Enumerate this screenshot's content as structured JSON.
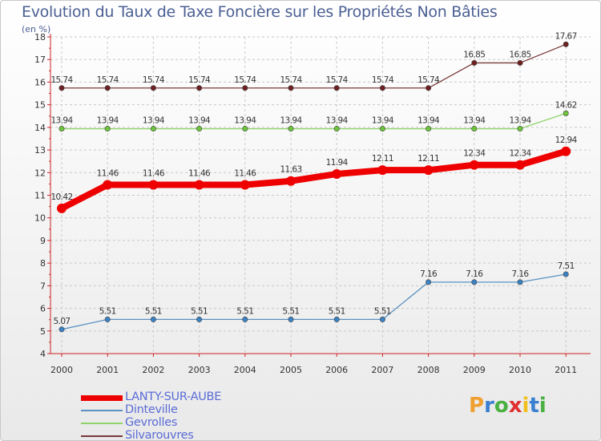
{
  "title": "Evolution du Taux de Taxe Foncière sur les Propriétés Non Bâties",
  "unit": "(en %)",
  "chart_data": {
    "type": "line",
    "title": "Evolution du Taux de Taxe Foncière sur les Propriétés Non Bâties",
    "xlabel": "",
    "ylabel": "(en %)",
    "categories": [
      "2000",
      "2001",
      "2002",
      "2003",
      "2004",
      "2005",
      "2006",
      "2007",
      "2008",
      "2009",
      "2010",
      "2011"
    ],
    "ylim": [
      4,
      18
    ],
    "yticks": [
      4,
      5,
      6,
      7,
      8,
      9,
      10,
      11,
      12,
      13,
      14,
      15,
      16,
      17,
      18
    ],
    "grid": true,
    "series": [
      {
        "name": "LANTY-SUR-AUBE",
        "color": "#ee0000",
        "highlight": true,
        "values": [
          10.42,
          11.46,
          11.46,
          11.46,
          11.46,
          11.63,
          11.94,
          12.11,
          12.11,
          12.34,
          12.34,
          12.94
        ],
        "labels": [
          "10.42",
          "11.46",
          "11.46",
          "11.46",
          "11.46",
          "11.63",
          "11.94",
          "12.11",
          "12.11",
          "12.34",
          "12.34",
          "12.94"
        ]
      },
      {
        "name": "Dinteville",
        "color": "#5b92c2",
        "marker_color": "#3b82c4",
        "values": [
          5.07,
          5.51,
          5.51,
          5.51,
          5.51,
          5.51,
          5.51,
          5.51,
          7.16,
          7.16,
          7.16,
          7.51
        ],
        "labels": [
          "5.07",
          "5.51",
          "5.51",
          "5.51",
          "5.51",
          "5.51",
          "5.51",
          "5.51",
          "7.16",
          "7.16",
          "7.16",
          "7.51"
        ]
      },
      {
        "name": "Gevrolles",
        "color": "#8fd36a",
        "marker_color": "#6cc43a",
        "values": [
          13.94,
          13.94,
          13.94,
          13.94,
          13.94,
          13.94,
          13.94,
          13.94,
          13.94,
          13.94,
          13.94,
          14.62
        ],
        "labels": [
          "13.94",
          "13.94",
          "13.94",
          "13.94",
          "13.94",
          "13.94",
          "13.94",
          "13.94",
          "13.94",
          "13.94",
          "13.94",
          "14.62"
        ]
      },
      {
        "name": "Silvarouvres",
        "color": "#7a3a3a",
        "marker_color": "#6e1f1f",
        "values": [
          15.74,
          15.74,
          15.74,
          15.74,
          15.74,
          15.74,
          15.74,
          15.74,
          15.74,
          16.85,
          16.85,
          17.67
        ],
        "labels": [
          "15.74",
          "15.74",
          "15.74",
          "15.74",
          "15.74",
          "15.74",
          "15.74",
          "15.74",
          "15.74",
          "16.85",
          "16.85",
          "17.67"
        ]
      }
    ]
  },
  "legend": [
    {
      "label": "LANTY-SUR-AUBE",
      "color": "#ee0000"
    },
    {
      "label": "Dinteville",
      "color": "#5b92c2"
    },
    {
      "label": "Gevrolles",
      "color": "#8fd36a"
    },
    {
      "label": "Silvarouvres",
      "color": "#7a3a3a"
    }
  ],
  "logo": {
    "letters": [
      "P",
      "r",
      "o",
      "x",
      "i",
      "t",
      "i"
    ],
    "colors": [
      "#f0a030",
      "#3a7fd0",
      "#4ab040",
      "#e03030",
      "#f0c020",
      "#3a7fd0",
      "#4ab040"
    ]
  }
}
